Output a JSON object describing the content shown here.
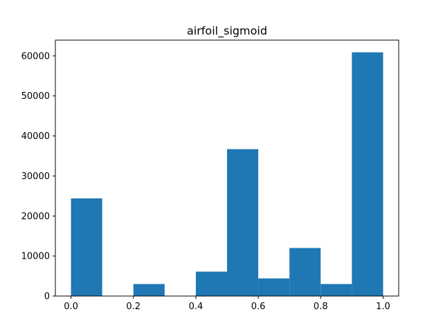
{
  "chart_data": {
    "type": "bar",
    "title": "airfoil_sigmoid",
    "xlabel": "",
    "ylabel": "",
    "bins": [
      {
        "x0": 0.0,
        "x1": 0.1,
        "count": 24400
      },
      {
        "x0": 0.1,
        "x1": 0.2,
        "count": 0
      },
      {
        "x0": 0.2,
        "x1": 0.3,
        "count": 3000
      },
      {
        "x0": 0.3,
        "x1": 0.4,
        "count": 0
      },
      {
        "x0": 0.4,
        "x1": 0.5,
        "count": 6100
      },
      {
        "x0": 0.5,
        "x1": 0.6,
        "count": 36700
      },
      {
        "x0": 0.6,
        "x1": 0.7,
        "count": 4400
      },
      {
        "x0": 0.7,
        "x1": 0.8,
        "count": 12000
      },
      {
        "x0": 0.8,
        "x1": 0.9,
        "count": 3000
      },
      {
        "x0": 0.9,
        "x1": 1.0,
        "count": 60900
      }
    ],
    "xlim": [
      -0.05,
      1.05
    ],
    "ylim": [
      0,
      63945
    ],
    "x_ticks": [
      {
        "value": 0.0,
        "label": "0.0"
      },
      {
        "value": 0.2,
        "label": "0.2"
      },
      {
        "value": 0.4,
        "label": "0.4"
      },
      {
        "value": 0.6,
        "label": "0.6"
      },
      {
        "value": 0.8,
        "label": "0.8"
      },
      {
        "value": 1.0,
        "label": "1.0"
      }
    ],
    "y_ticks": [
      {
        "value": 0,
        "label": "0"
      },
      {
        "value": 10000,
        "label": "10000"
      },
      {
        "value": 20000,
        "label": "20000"
      },
      {
        "value": 30000,
        "label": "30000"
      },
      {
        "value": 40000,
        "label": "40000"
      },
      {
        "value": 50000,
        "label": "50000"
      },
      {
        "value": 60000,
        "label": "60000"
      }
    ],
    "grid": false,
    "bar_color": "#1f77b4"
  }
}
